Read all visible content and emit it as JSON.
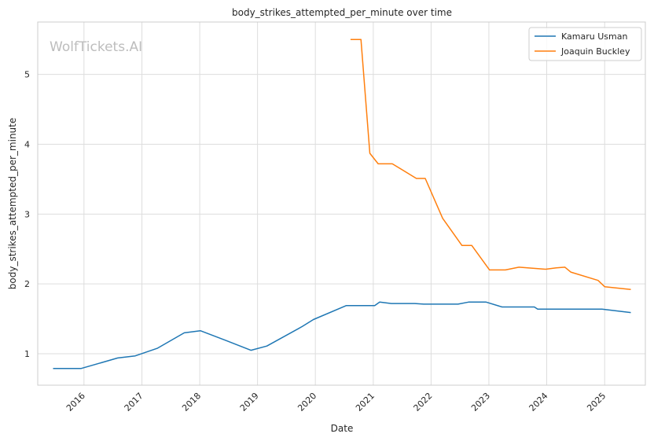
{
  "watermark": "WolfTickets.AI",
  "chart_data": {
    "type": "line",
    "title": "body_strikes_attempted_per_minute over time",
    "xlabel": "Date",
    "ylabel": "body_strikes_attempted_per_minute",
    "x_ticks": [
      "2016",
      "2017",
      "2018",
      "2019",
      "2020",
      "2021",
      "2022",
      "2023",
      "2024",
      "2025"
    ],
    "y_ticks": [
      1,
      2,
      3,
      4,
      5
    ],
    "xlim": [
      "2015-03-15",
      "2025-09-15"
    ],
    "ylim": [
      0.55,
      5.75
    ],
    "grid": true,
    "legend_position": "top-right",
    "series": [
      {
        "name": "Kamaru Usman",
        "color": "#1f77b4",
        "points": [
          [
            "2015-06-20",
            0.79
          ],
          [
            "2015-12-15",
            0.79
          ],
          [
            "2016-08-01",
            0.94
          ],
          [
            "2016-11-20",
            0.97
          ],
          [
            "2017-04-10",
            1.08
          ],
          [
            "2017-09-25",
            1.3
          ],
          [
            "2018-01-05",
            1.33
          ],
          [
            "2018-06-15",
            1.19
          ],
          [
            "2018-11-20",
            1.05
          ],
          [
            "2019-03-01",
            1.11
          ],
          [
            "2019-10-10",
            1.39
          ],
          [
            "2019-12-20",
            1.49
          ],
          [
            "2020-07-15",
            1.69
          ],
          [
            "2021-01-10",
            1.69
          ],
          [
            "2021-02-10",
            1.74
          ],
          [
            "2021-04-25",
            1.72
          ],
          [
            "2021-09-20",
            1.72
          ],
          [
            "2021-11-15",
            1.71
          ],
          [
            "2022-06-20",
            1.71
          ],
          [
            "2022-08-25",
            1.74
          ],
          [
            "2022-12-15",
            1.74
          ],
          [
            "2023-03-25",
            1.67
          ],
          [
            "2023-10-15",
            1.67
          ],
          [
            "2023-11-05",
            1.64
          ],
          [
            "2024-12-15",
            1.64
          ],
          [
            "2025-06-15",
            1.59
          ]
        ]
      },
      {
        "name": "Joaquin Buckley",
        "color": "#ff7f0e",
        "points": [
          [
            "2020-08-10",
            5.5
          ],
          [
            "2020-10-15",
            5.5
          ],
          [
            "2020-12-10",
            3.87
          ],
          [
            "2021-02-01",
            3.72
          ],
          [
            "2021-05-01",
            3.72
          ],
          [
            "2021-09-30",
            3.51
          ],
          [
            "2021-11-25",
            3.51
          ],
          [
            "2022-03-15",
            2.94
          ],
          [
            "2022-07-15",
            2.55
          ],
          [
            "2022-09-15",
            2.55
          ],
          [
            "2023-01-05",
            2.2
          ],
          [
            "2023-04-15",
            2.2
          ],
          [
            "2023-07-10",
            2.24
          ],
          [
            "2023-12-25",
            2.21
          ],
          [
            "2024-03-01",
            2.23
          ],
          [
            "2024-04-25",
            2.24
          ],
          [
            "2024-06-01",
            2.17
          ],
          [
            "2024-11-20",
            2.05
          ],
          [
            "2025-01-01",
            1.96
          ],
          [
            "2025-06-15",
            1.92
          ]
        ]
      }
    ]
  }
}
